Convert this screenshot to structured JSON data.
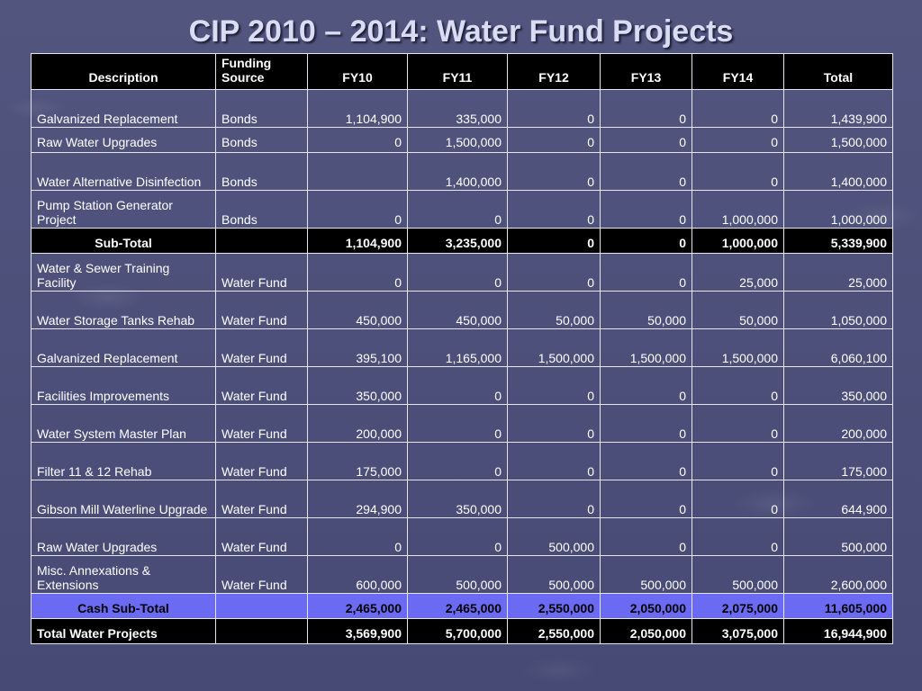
{
  "title": "CIP 2010 – 2014: Water Fund Projects",
  "headers": [
    "Description",
    "Funding Source",
    "FY10",
    "FY11",
    "FY12",
    "FY13",
    "FY14",
    "Total"
  ],
  "rows": [
    {
      "desc": "Galvanized Replacement",
      "src": "Bonds",
      "fy10": "1,104,900",
      "fy11": "335,000",
      "fy12": "0",
      "fy13": "0",
      "fy14": "0",
      "total": "1,439,900"
    },
    {
      "desc": "Raw Water Upgrades",
      "src": "Bonds",
      "fy10": "0",
      "fy11": "1,500,000",
      "fy12": "0",
      "fy13": "0",
      "fy14": "0",
      "total": "1,500,000"
    },
    {
      "desc": "Water Alternative Disinfection",
      "src": "Bonds",
      "fy10": "",
      "fy11": "1,400,000",
      "fy12": "0",
      "fy13": "0",
      "fy14": "0",
      "total": "1,400,000"
    },
    {
      "desc": "Pump Station Generator Project",
      "src": "Bonds",
      "fy10": "0",
      "fy11": "0",
      "fy12": "0",
      "fy13": "0",
      "fy14": "1,000,000",
      "total": "1,000,000"
    }
  ],
  "subtotal": {
    "label": "Sub-Total",
    "src": "",
    "fy10": "1,104,900",
    "fy11": "3,235,000",
    "fy12": "0",
    "fy13": "0",
    "fy14": "1,000,000",
    "total": "5,339,900"
  },
  "rows2": [
    {
      "desc": "Water & Sewer Training Facility",
      "src": "Water Fund",
      "fy10": "0",
      "fy11": "0",
      "fy12": "0",
      "fy13": "0",
      "fy14": "25,000",
      "total": "25,000"
    },
    {
      "desc": "Water Storage Tanks Rehab",
      "src": "Water Fund",
      "fy10": "450,000",
      "fy11": "450,000",
      "fy12": "50,000",
      "fy13": "50,000",
      "fy14": "50,000",
      "total": "1,050,000"
    },
    {
      "desc": "Galvanized Replacement",
      "src": "Water Fund",
      "fy10": "395,100",
      "fy11": "1,165,000",
      "fy12": "1,500,000",
      "fy13": "1,500,000",
      "fy14": "1,500,000",
      "total": "6,060,100"
    },
    {
      "desc": "Facilities Improvements",
      "src": "Water Fund",
      "fy10": "350,000",
      "fy11": "0",
      "fy12": "0",
      "fy13": "0",
      "fy14": "0",
      "total": "350,000"
    },
    {
      "desc": "Water System Master Plan",
      "src": "Water Fund",
      "fy10": "200,000",
      "fy11": "0",
      "fy12": "0",
      "fy13": "0",
      "fy14": "0",
      "total": "200,000"
    },
    {
      "desc": "Filter 11 & 12 Rehab",
      "src": "Water Fund",
      "fy10": "175,000",
      "fy11": "0",
      "fy12": "0",
      "fy13": "0",
      "fy14": "0",
      "total": "175,000"
    },
    {
      "desc": "Gibson Mill Waterline Upgrade",
      "src": "Water Fund",
      "fy10": "294,900",
      "fy11": "350,000",
      "fy12": "0",
      "fy13": "0",
      "fy14": "0",
      "total": "644,900"
    },
    {
      "desc": "Raw Water Upgrades",
      "src": "Water Fund",
      "fy10": "0",
      "fy11": "0",
      "fy12": "500,000",
      "fy13": "0",
      "fy14": "0",
      "total": "500,000"
    },
    {
      "desc": "Misc. Annexations & Extensions",
      "src": "Water Fund",
      "fy10": "600,000",
      "fy11": "500,000",
      "fy12": "500,000",
      "fy13": "500,000",
      "fy14": "500,000",
      "total": "2,600,000"
    }
  ],
  "cash_subtotal": {
    "label": "Cash Sub-Total",
    "src": "",
    "fy10": "2,465,000",
    "fy11": "2,465,000",
    "fy12": "2,550,000",
    "fy13": "2,050,000",
    "fy14": "2,075,000",
    "total": "11,605,000"
  },
  "grand_total": {
    "label": "Total Water Projects",
    "src": "",
    "fy10": "3,569,900",
    "fy11": "5,700,000",
    "fy12": "2,550,000",
    "fy13": "2,050,000",
    "fy14": "3,075,000",
    "total": "16,944,900"
  },
  "colors": {
    "background": "#4a4d7a",
    "header": "#000000",
    "cash_row": "#6a6af2",
    "title": "#d9dcf3"
  }
}
